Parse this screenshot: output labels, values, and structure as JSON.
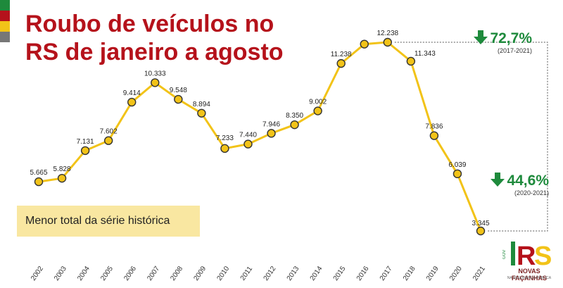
{
  "title": {
    "line1": "Roubo de veículos no",
    "line2": "RS de janeiro a agosto"
  },
  "colors": {
    "title": "#b5121b",
    "line": "#f2c318",
    "marker_fill": "#f2c318",
    "marker_stroke": "#333333",
    "callout_green": "#1e8a3c",
    "note_bg": "#f9e7a1",
    "stripes": [
      "#1e8a3c",
      "#b5121b",
      "#f2c318",
      "#777777"
    ]
  },
  "note": "Menor total da série histórica",
  "callouts": [
    {
      "icon": "down-arrow-icon",
      "value": "72,7%",
      "period": "(2017-2021)"
    },
    {
      "icon": "down-arrow-icon",
      "value": "44,6%",
      "period": "(2020-2021)"
    }
  ],
  "logo": {
    "mark": "RS",
    "gov": "GOV",
    "text": "NOVAS FAÇANHAS",
    "sub": "NA SEGURANÇA PÚBLICA"
  },
  "chart_data": {
    "type": "line",
    "title": "Roubo de veículos no RS de janeiro a agosto",
    "categories": [
      "2002",
      "2003",
      "2004",
      "2005",
      "2006",
      "2007",
      "2008",
      "2009",
      "2010",
      "2011",
      "2012",
      "2013",
      "2014",
      "2015",
      "2016",
      "2017",
      "2018",
      "2019",
      "2020",
      "2021"
    ],
    "values": [
      5665,
      5828,
      7131,
      7602,
      9414,
      10333,
      9548,
      8894,
      7233,
      7440,
      7946,
      8350,
      9002,
      11238,
      12150,
      12238,
      11343,
      7836,
      6039,
      3345
    ],
    "data_labels": [
      "5.665",
      "5.828",
      "7.131",
      "7.602",
      "9.414",
      "10.333",
      "9.548",
      "8.894",
      "7.233",
      "7.440",
      "7.946",
      "8.350",
      "9.002",
      "11.238",
      "",
      "12.238",
      "11.343",
      "7.836",
      "6.039",
      "3.345"
    ],
    "xlabel": "",
    "ylabel": "",
    "ylim": [
      3000,
      13000
    ],
    "grid": false,
    "legend": "none"
  }
}
